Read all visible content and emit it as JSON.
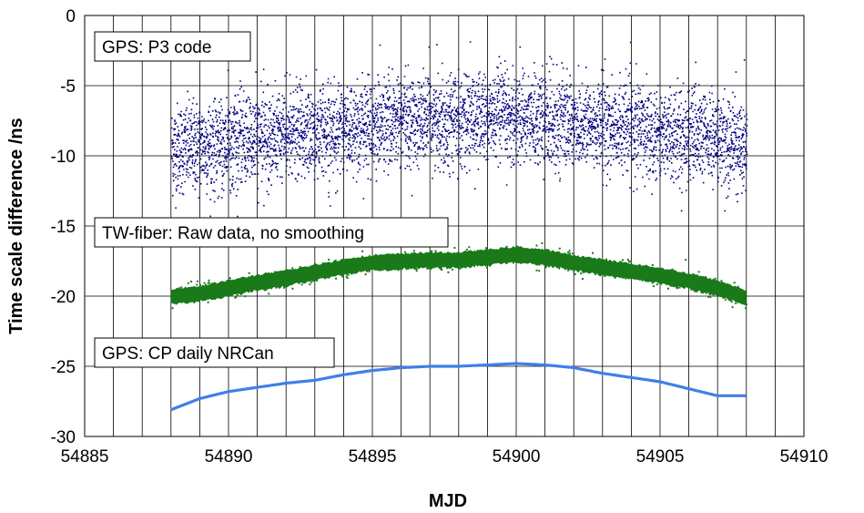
{
  "chart_data": {
    "type": "scatter",
    "title": "",
    "xlabel": "MJD",
    "ylabel": "Time scale difference /ns",
    "xlim": [
      54885,
      54910
    ],
    "ylim": [
      -30,
      0
    ],
    "x_ticks": [
      54885,
      54890,
      54895,
      54900,
      54905,
      54910
    ],
    "y_ticks": [
      0,
      -5,
      -10,
      -15,
      -20,
      -25,
      -30
    ],
    "grid": {
      "vertical_step": 1,
      "horizontal_step": 5
    },
    "legend": "none",
    "annotations": [
      {
        "text": "GPS: P3 code",
        "series": 0
      },
      {
        "text": "TW-fiber: Raw data, no smoothing",
        "series": 1
      },
      {
        "text": "GPS: CP daily NRCan",
        "series": 2
      }
    ],
    "series": [
      {
        "kind": "scatter",
        "color": "#000080",
        "x_range": [
          54888,
          54908
        ],
        "noise_sd": 1.6,
        "noise_range": [
          -14.5,
          -0.8
        ],
        "x": [
          54888,
          54890,
          54892,
          54894,
          54896,
          54898,
          54900,
          54902,
          54904,
          54906,
          54908
        ],
        "y_mean": [
          -9.5,
          -9.0,
          -8.5,
          -8.0,
          -7.5,
          -7.3,
          -7.2,
          -7.6,
          -8.0,
          -8.5,
          -9.2
        ]
      },
      {
        "kind": "band",
        "color": "#1a7a1a",
        "x": [
          54888,
          54889,
          54890,
          54891,
          54892,
          54893,
          54894,
          54895,
          54896,
          54897,
          54898,
          54899,
          54900,
          54901,
          54902,
          54903,
          54904,
          54905,
          54906,
          54907,
          54908
        ],
        "y": [
          -20.0,
          -19.8,
          -19.4,
          -19.0,
          -18.7,
          -18.3,
          -17.9,
          -17.6,
          -17.5,
          -17.4,
          -17.4,
          -17.2,
          -17.0,
          -17.2,
          -17.6,
          -17.9,
          -18.2,
          -18.5,
          -18.9,
          -19.4,
          -20.1
        ],
        "band_halfwidth": 0.45
      },
      {
        "kind": "line",
        "color": "#3f7fe8",
        "x": [
          54888,
          54889,
          54890,
          54891,
          54892,
          54893,
          54894,
          54895,
          54896,
          54897,
          54898,
          54899,
          54900,
          54901,
          54902,
          54903,
          54904,
          54905,
          54906,
          54907,
          54908
        ],
        "y": [
          -28.1,
          -27.3,
          -26.8,
          -26.5,
          -26.2,
          -26.0,
          -25.6,
          -25.3,
          -25.1,
          -25.0,
          -25.0,
          -24.9,
          -24.8,
          -24.9,
          -25.1,
          -25.5,
          -25.8,
          -26.1,
          -26.6,
          -27.1,
          -27.1
        ]
      }
    ]
  }
}
